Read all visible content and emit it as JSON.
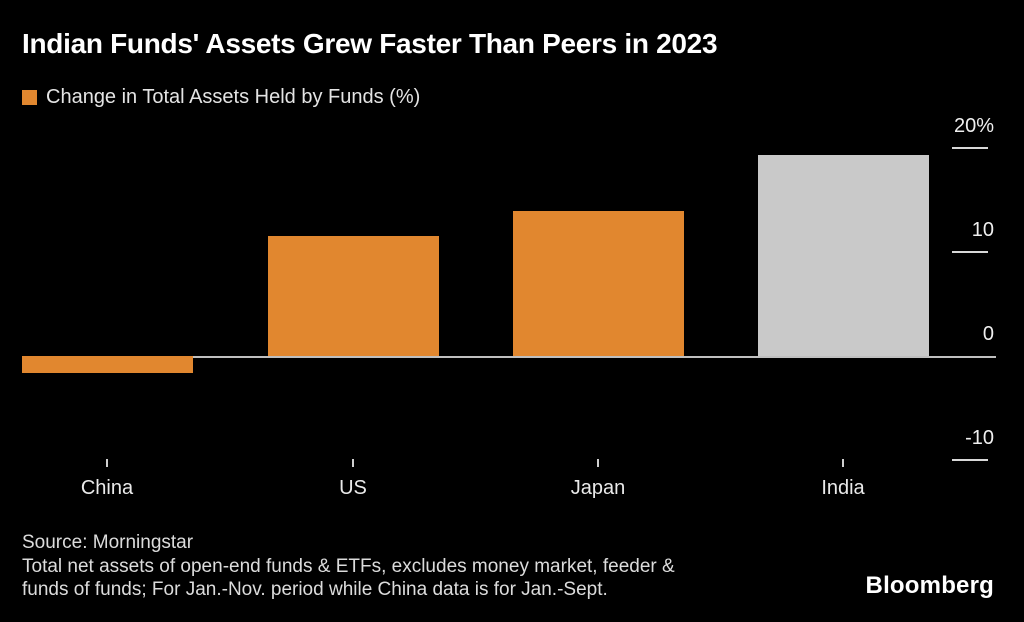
{
  "title": "Indian Funds' Assets Grew Faster Than Peers in 2023",
  "legend": {
    "label": "Change in Total Assets Held by Funds (%)",
    "swatch_color": "#E1872F"
  },
  "chart_data": {
    "type": "bar",
    "title": "Indian Funds' Assets Grew Faster Than Peers in 2023",
    "series_label": "Change in Total Assets Held by Funds (%)",
    "categories": [
      "China",
      "US",
      "Japan",
      "India"
    ],
    "values": [
      -1.6,
      11.5,
      13.9,
      19.3
    ],
    "bar_colors": [
      "#E1872F",
      "#E1872F",
      "#E1872F",
      "#C9C9C9"
    ],
    "unit": "%",
    "xlabel": "",
    "ylabel": "",
    "y_ticks": [
      {
        "label": "20%",
        "value": 20
      },
      {
        "label": "10",
        "value": 10
      },
      {
        "label": "0",
        "value": 0
      },
      {
        "label": "-10",
        "value": -10
      }
    ],
    "ylim": [
      -13,
      22
    ],
    "grid": "short right-side tick dashes plus zero baseline",
    "legend_position": "top-left",
    "axis_side": "right"
  },
  "footer": {
    "source_lines": [
      "Source: Morningstar",
      "Total net assets of open-end funds & ETFs, excludes money market, feeder &",
      "funds of funds; For Jan.-Nov. period while China data is for Jan.-Sept."
    ],
    "brand": "Bloomberg"
  },
  "colors": {
    "background": "#000000",
    "title_text": "#FFFFFF",
    "legend_text": "#E4E4E4",
    "axis_text": "#EFEFEF",
    "axis_line": "#BFBFBF",
    "accent_orange": "#E1872F",
    "highlight_gray": "#C9C9C9",
    "source_text": "#DCDCDC"
  }
}
